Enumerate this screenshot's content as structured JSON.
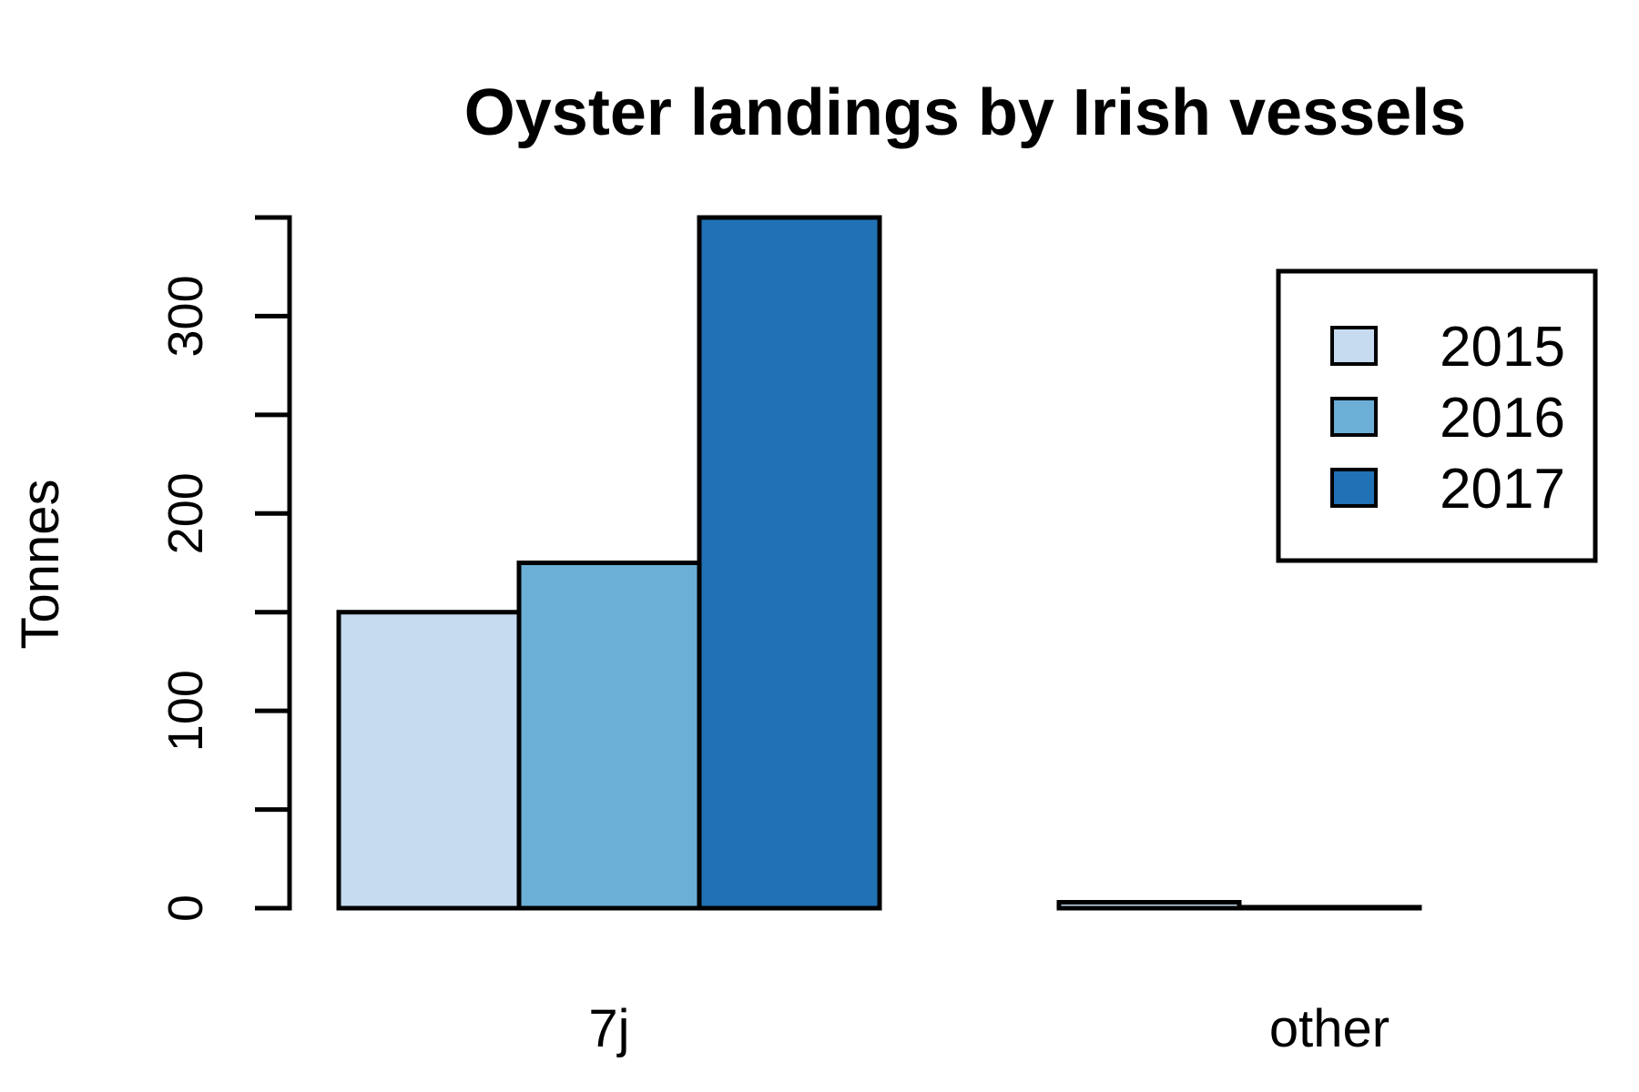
{
  "chart_data": {
    "type": "bar",
    "title": "Oyster landings by Irish vessels",
    "xlabel": "",
    "ylabel": "Tonnes",
    "categories": [
      "7j",
      "other"
    ],
    "series": [
      {
        "name": "2015",
        "values": [
          150,
          3
        ],
        "color": "#c6dbef"
      },
      {
        "name": "2016",
        "values": [
          175,
          0.5
        ],
        "color": "#6baed6"
      },
      {
        "name": "2017",
        "values": [
          350,
          0
        ],
        "color": "#2171b5"
      }
    ],
    "ylim": [
      0,
      350
    ],
    "yticks": [
      0,
      50,
      100,
      150,
      200,
      250,
      300,
      350
    ],
    "ytick_labels": [
      "0",
      "",
      "100",
      "",
      "200",
      "",
      "300",
      ""
    ],
    "grid": false,
    "legend_position": "top-right",
    "bar_outline_color": "#000000"
  }
}
